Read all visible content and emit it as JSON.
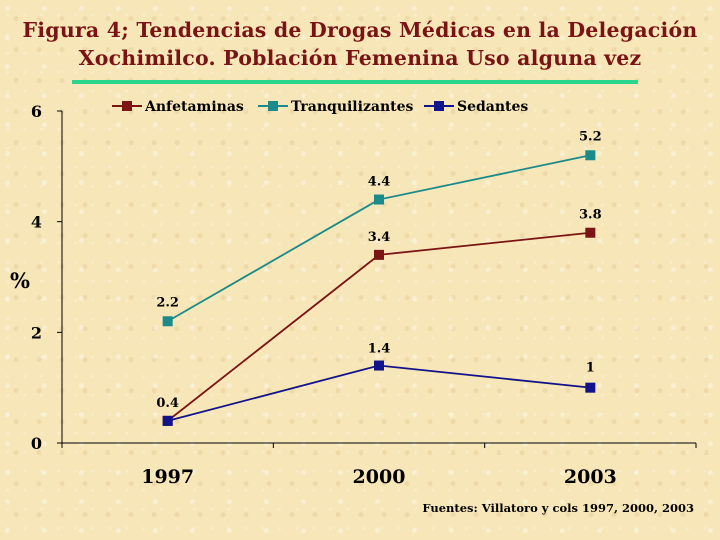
{
  "title_lines": [
    "Figura 4; Tendencias de Drogas Médicas en  la Delegación",
    "Xochimilco. Población Femenina Uso alguna vez"
  ],
  "source": "Fuentes: Villatoro y cols 1997, 2000, 2003",
  "colors": {
    "title": "#7a1414",
    "rule": "#2bd58e",
    "Anfetaminas": "#7b1414",
    "Tranquilizantes": "#1a8a8a",
    "Sedantes": "#12128a"
  },
  "chart_data": {
    "type": "line",
    "title": "Figura 4; Tendencias de Drogas Médicas en  la Delegación Xochimilco. Población Femenina Uso alguna vez",
    "xlabel": "",
    "ylabel": "%",
    "categories": [
      "1997",
      "2000",
      "2003"
    ],
    "ylim": [
      0,
      6
    ],
    "yticks": [
      "0",
      "2",
      "4",
      "6"
    ],
    "grid": false,
    "legend_position": "top",
    "series": [
      {
        "name": "Anfetaminas",
        "values": [
          0.4,
          3.4,
          3.8
        ],
        "labels": [
          "",
          "3.4",
          "3.8"
        ]
      },
      {
        "name": "Tranquilizantes",
        "values": [
          2.2,
          4.4,
          5.2
        ],
        "labels": [
          "2.2",
          "4.4",
          "5.2"
        ]
      },
      {
        "name": "Sedantes",
        "values": [
          0.4,
          1.4,
          1.0
        ],
        "labels": [
          "0.4",
          "1.4",
          "1"
        ]
      }
    ]
  }
}
